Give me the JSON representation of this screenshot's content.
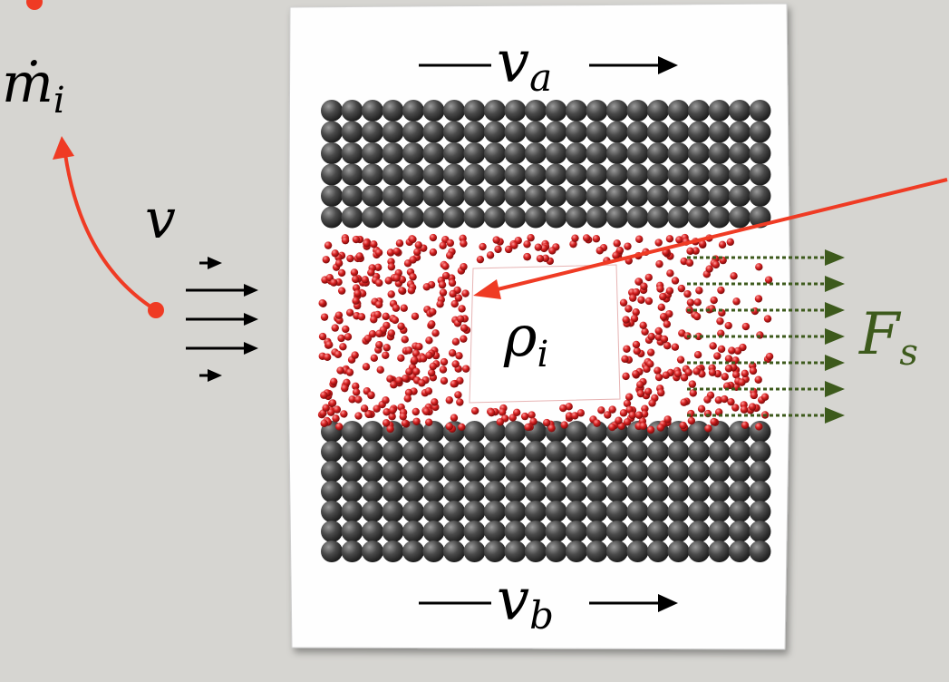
{
  "labels": {
    "mass_rate": {
      "symbol": "ṁ",
      "subscript": "i"
    },
    "velocity": {
      "symbol": "v"
    },
    "top_velocity": {
      "symbol": "v",
      "subscript": "a"
    },
    "bottom_velocity": {
      "symbol": "v",
      "subscript": "b"
    },
    "density": {
      "symbol": "ρ",
      "subscript": "i"
    },
    "force": {
      "symbol": "F",
      "subscript": "s"
    }
  }
}
